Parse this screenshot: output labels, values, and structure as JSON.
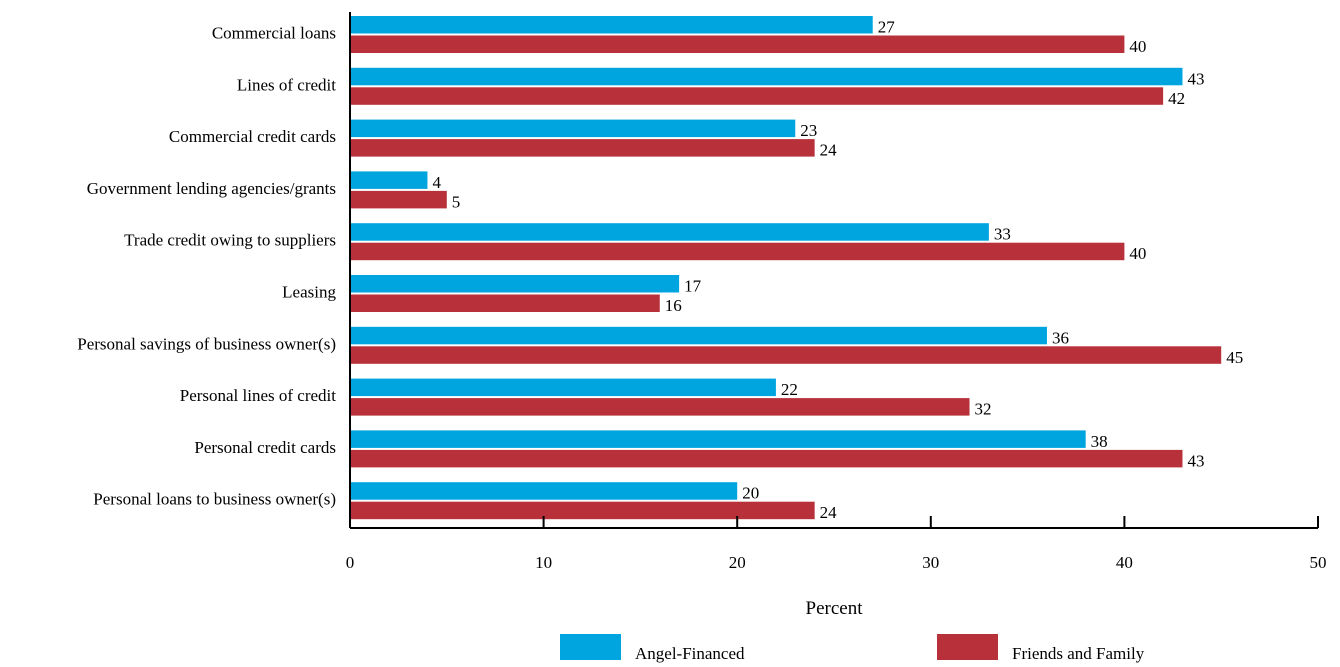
{
  "chart_data": {
    "type": "bar",
    "orientation": "horizontal",
    "categories": [
      "Commercial loans",
      "Lines of credit",
      "Commercial credit cards",
      "Government lending agencies/grants",
      "Trade credit owing to suppliers",
      "Leasing",
      "Personal savings of business owner(s)",
      "Personal lines of credit ",
      "Personal credit cards ",
      "Personal loans to business owner(s)"
    ],
    "series": [
      {
        "name": "Angel-Financed",
        "color": "#00A5E0",
        "values": [
          27,
          43,
          23,
          4,
          33,
          17,
          36,
          22,
          38,
          20
        ]
      },
      {
        "name": "Friends and Family",
        "color": "#B8313A",
        "values": [
          40,
          42,
          24,
          5,
          40,
          16,
          45,
          32,
          43,
          24
        ]
      }
    ],
    "xlabel": "Percent",
    "ylabel": "",
    "xlim": [
      0,
      50
    ],
    "xticks": [
      0,
      10,
      20,
      30,
      40,
      50
    ],
    "grid": false,
    "legend_position": "bottom"
  }
}
